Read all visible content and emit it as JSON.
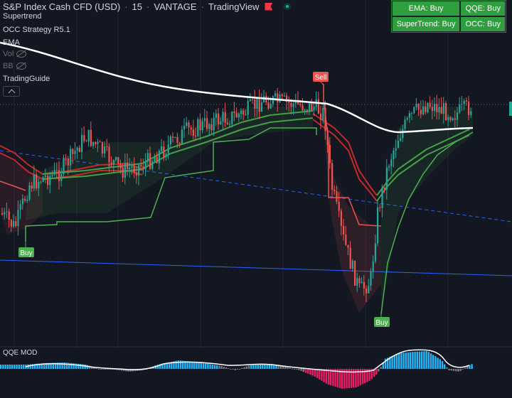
{
  "header": {
    "symbol": "S&P Index Cash CFD (USD)",
    "interval": "15",
    "exchange": "VANTAGE",
    "source": "TradingView",
    "separator": "·"
  },
  "indicators": {
    "supertrend": "Supertrend",
    "occ": "OCC Strategy R5.1",
    "ema": "EMA",
    "vol": "Vol",
    "bb": "BB",
    "guide": "TradingGuide"
  },
  "signal_table": {
    "ema": "EMA: Buy",
    "qqe": "QQE: Buy",
    "supertrend": "SuperTrend: Buy",
    "occ": "OCC: Buy"
  },
  "markers": {
    "buy_left": "Buy",
    "sell": "Sell",
    "buy_right": "Buy"
  },
  "qqe_pane": {
    "label": "QQE MOD"
  },
  "colors": {
    "background": "#131722",
    "up_candle": "#26a69a",
    "down_candle": "#ef5350",
    "supertrend_up": "#4caf50",
    "supertrend_down": "#ef5350",
    "ema_line": "#ffffff",
    "qqe_up": "#29b6f6",
    "qqe_down": "#e91e63",
    "signal_buy": "#2e9e3e"
  },
  "icons": [
    "flag-icon",
    "live-dot-icon",
    "eye-off-icon",
    "chevron-up-icon"
  ]
}
